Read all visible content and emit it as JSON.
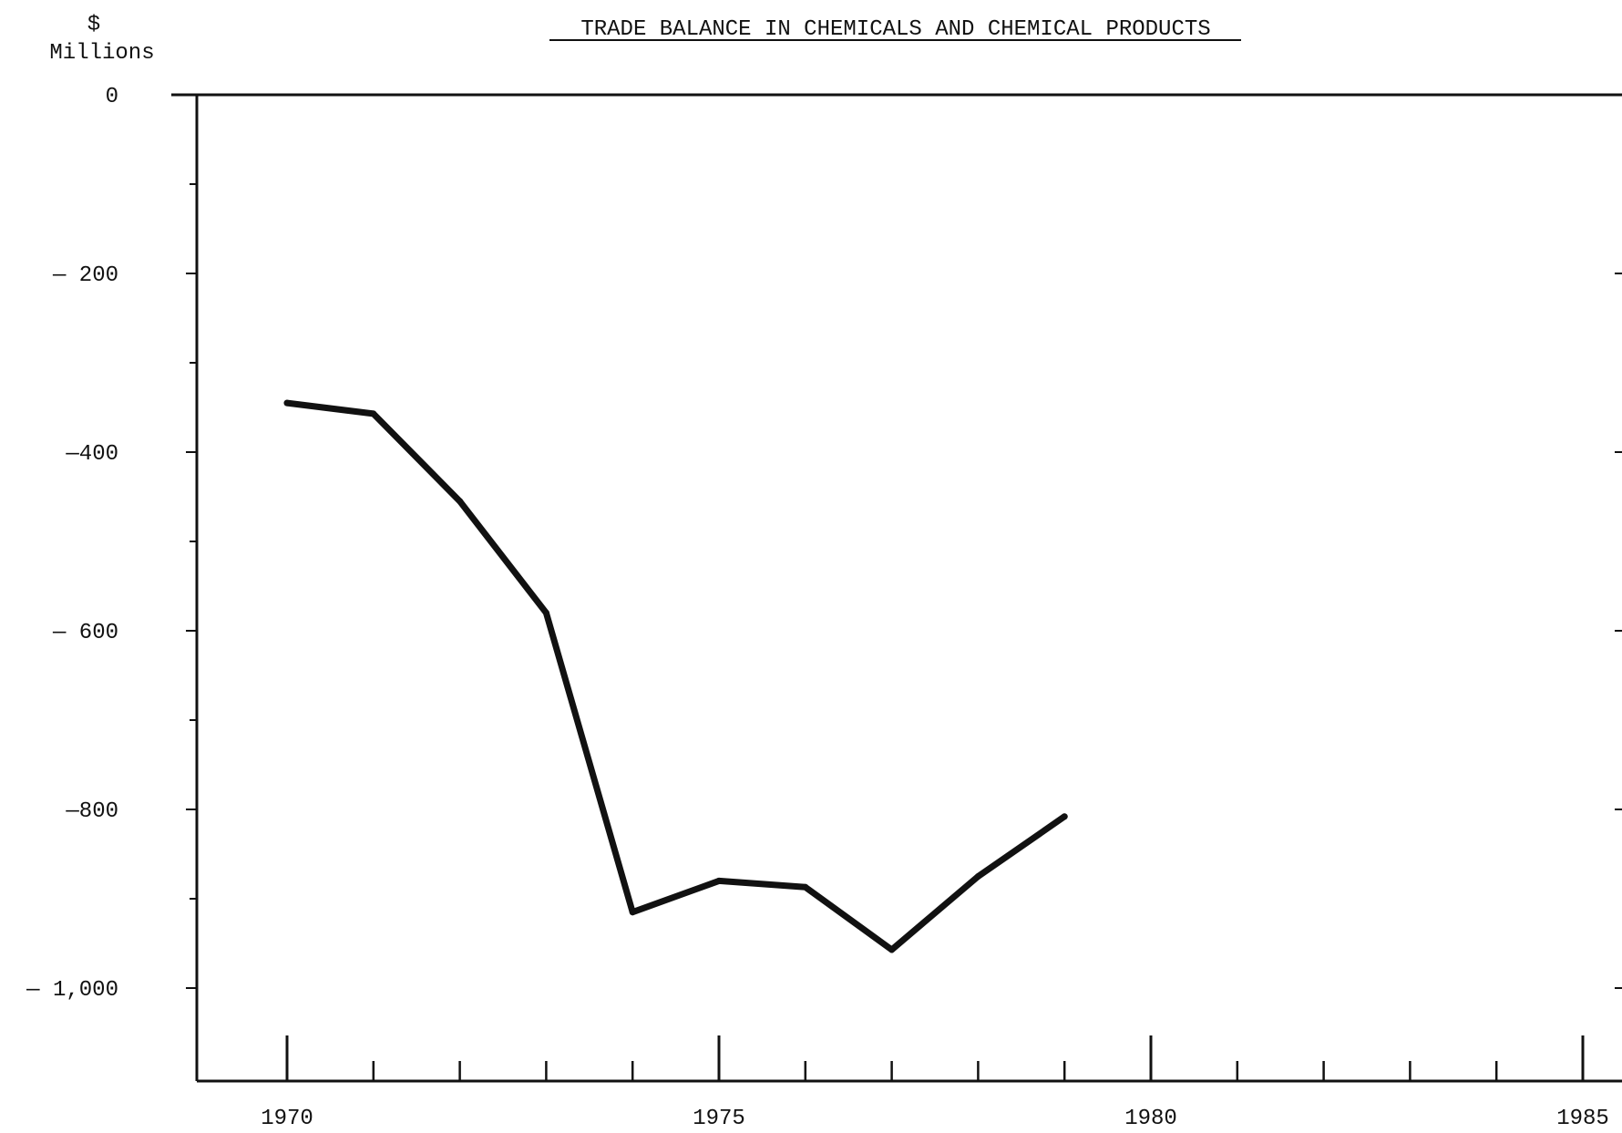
{
  "chart_data": {
    "type": "line",
    "title": "TRADE BALANCE IN CHEMICALS AND CHEMICAL PRODUCTS",
    "ylabel_currency": "$",
    "ylabel_unit": "Millions",
    "xlabel": "",
    "xlim": [
      1969,
      1985
    ],
    "ylim": [
      -1100,
      0
    ],
    "yticks": [
      0,
      -200,
      -400,
      -600,
      -800,
      -1000
    ],
    "ytick_labels": [
      "0",
      "— 200",
      "—400",
      "— 600",
      "—800",
      "— 1,000"
    ],
    "xticks_major": [
      1970,
      1975,
      1980,
      1985
    ],
    "xtick_labels": [
      "1970",
      "1975",
      "1980",
      "1985"
    ],
    "grid": false,
    "legend": "none",
    "line_color": "#111111",
    "series": [
      {
        "x": [
          1970,
          1971,
          1972,
          1973,
          1974,
          1975,
          1976,
          1977,
          1978,
          1979
        ],
        "values": [
          -345,
          -357,
          -455,
          -580,
          -915,
          -880,
          -887,
          -957,
          -875,
          -808
        ]
      }
    ]
  }
}
